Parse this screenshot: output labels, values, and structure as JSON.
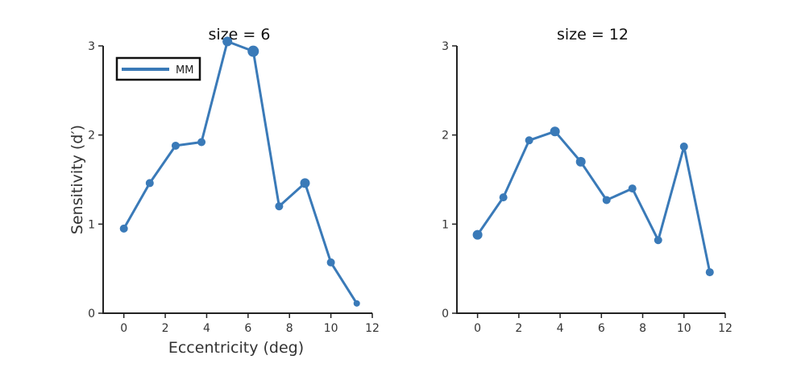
{
  "chart_data": [
    {
      "type": "line",
      "title": "size = 6",
      "xlabel": "Eccentricity (deg)",
      "ylabel": "Sensitivity (d′)",
      "xlim": [
        -1,
        12
      ],
      "ylim": [
        0,
        3
      ],
      "xticks": [
        "0",
        "2",
        "4",
        "6",
        "8",
        "10",
        "12"
      ],
      "yticks": [
        "0",
        "1",
        "2",
        "3"
      ],
      "legend": {
        "entries": [
          "MM"
        ],
        "placement": "top-left"
      },
      "grid": false,
      "color": "#3a7ab8",
      "series": [
        {
          "name": "MM",
          "x": [
            0,
            1.25,
            2.5,
            3.75,
            5.0,
            6.25,
            7.5,
            8.75,
            10.0,
            11.25
          ],
          "y": [
            0.95,
            1.46,
            1.88,
            1.92,
            3.05,
            2.94,
            1.2,
            1.46,
            0.57,
            0.11
          ],
          "marker_size": [
            5,
            5,
            5,
            5,
            6,
            7,
            5,
            6,
            5,
            4
          ]
        }
      ]
    },
    {
      "type": "line",
      "title": "size = 12",
      "xlabel": "",
      "ylabel": "",
      "xlim": [
        -1,
        12
      ],
      "ylim": [
        0,
        3
      ],
      "xticks": [
        "0",
        "2",
        "4",
        "6",
        "8",
        "10",
        "12"
      ],
      "yticks": [
        "0",
        "1",
        "2",
        "3"
      ],
      "grid": false,
      "color": "#3a7ab8",
      "series": [
        {
          "x": [
            0,
            1.25,
            2.5,
            3.75,
            5.0,
            6.25,
            7.5,
            8.75,
            10.0,
            11.25
          ],
          "y": [
            0.88,
            1.3,
            1.94,
            2.04,
            1.7,
            1.27,
            1.4,
            0.82,
            1.87,
            0.46
          ],
          "marker_size": [
            6,
            5,
            5,
            6,
            6,
            5,
            5,
            5,
            5,
            5
          ]
        }
      ]
    }
  ]
}
